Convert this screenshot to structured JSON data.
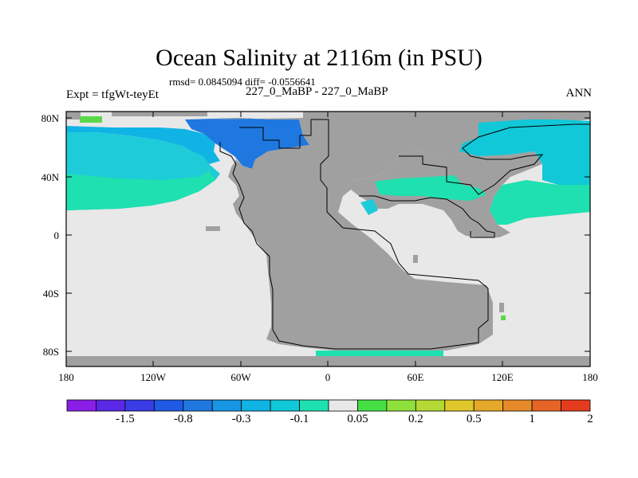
{
  "title": "Ocean Salinity at 2116m (in PSU)",
  "stats": "rmsd= 0.0845094 diff= -0.0556641",
  "expt_label": "Expt = tfgWt-teyEt",
  "case_label": "227_0_MaBP - 227_0_MaBP",
  "season": "ANN",
  "axes": {
    "lat_ticks": [
      "80N",
      "40N",
      "0",
      "40S",
      "80S"
    ],
    "lon_ticks": [
      "180",
      "120W",
      "60W",
      "0",
      "60E",
      "120E",
      "180"
    ]
  },
  "colors": {
    "land": "#a0a0a0",
    "near_zero": "#e8e8e8",
    "cyan_light": "#1ecbd8",
    "cyan": "#10b4e4",
    "aqua_green": "#1ee0b0",
    "blue": "#1e78e0",
    "green": "#5ad84a"
  },
  "colorbar": {
    "colors": [
      "#8a1ee6",
      "#5a28e6",
      "#3a3ce6",
      "#1e5ae6",
      "#1e78e0",
      "#1696e4",
      "#10b4e4",
      "#10c8d8",
      "#1ee0b0",
      "#e8e8e8",
      "#46e046",
      "#8ee03a",
      "#b4d834",
      "#e0c82a",
      "#e6a82a",
      "#e68a2a",
      "#e66428",
      "#e63c1e"
    ],
    "labels": [
      "-1.5",
      "-0.8",
      "-0.3",
      "-0.1",
      "0.05",
      "0.2",
      "0.5",
      "1",
      "2"
    ]
  }
}
